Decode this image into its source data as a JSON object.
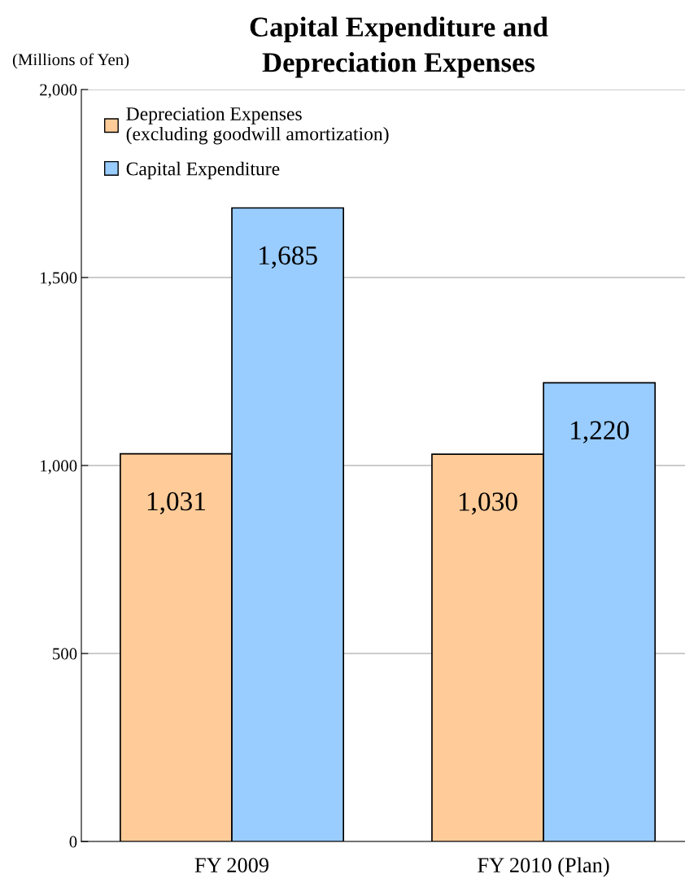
{
  "chart_data": {
    "type": "bar",
    "title": "Capital Expenditure and\nDepreciation Expenses",
    "ylabel": "(Millions of Yen)",
    "categories": [
      "FY 2009",
      "FY 2010 (Plan)"
    ],
    "series": [
      {
        "name": "Depreciation Expenses\n(excluding goodwill amortization)",
        "color": "#ffcc99",
        "values": [
          1031,
          1030
        ],
        "value_labels": [
          "1,031",
          "1,030"
        ]
      },
      {
        "name": "Capital Expenditure",
        "color": "#99ccff",
        "values": [
          1685,
          1220
        ],
        "value_labels": [
          "1,685",
          "1,220"
        ]
      }
    ],
    "ylim": [
      0,
      2000
    ],
    "yticks": [
      0,
      500,
      {
        "value": 1000,
        "label": "1,000"
      },
      {
        "value": 1500,
        "label": "1,500"
      },
      {
        "value": 2000,
        "label": "2,000"
      }
    ],
    "grid": "y",
    "legend": "top left"
  }
}
